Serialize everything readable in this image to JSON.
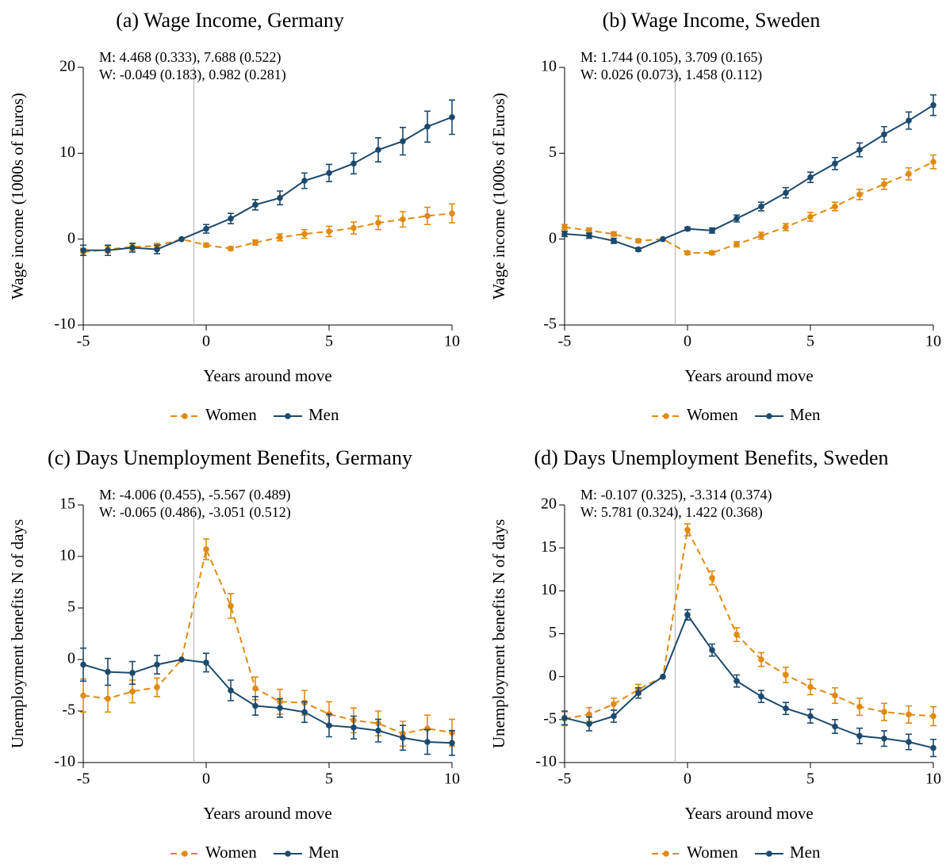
{
  "chart_data": [
    {
      "type": "line",
      "title": "(a) Wage Income, Germany",
      "x_label": "Years around move",
      "y_label": "Wage income (1000s of Euros)",
      "annotations": [
        "M: 4.468 (0.333), 7.688 (0.522)",
        "W: -0.049 (0.183), 0.982 (0.281)"
      ],
      "x": [
        -5,
        -4,
        -3,
        -2,
        -1,
        0,
        1,
        2,
        3,
        4,
        5,
        6,
        7,
        8,
        9,
        10
      ],
      "xlim": [
        -5,
        10
      ],
      "xticks": [
        -5,
        0,
        5,
        10
      ],
      "ylim": [
        -10,
        20
      ],
      "yticks": [
        -10,
        0,
        10,
        20
      ],
      "vline": -0.5,
      "series": [
        {
          "name": "Women",
          "color": "#e08a12",
          "dashed": true,
          "values": [
            -1.5,
            -1.2,
            -0.9,
            -0.8,
            0,
            -0.7,
            -1.1,
            -0.4,
            0.2,
            0.6,
            0.9,
            1.3,
            1.9,
            2.3,
            2.7,
            3.0
          ],
          "errors": [
            0.4,
            0.4,
            0.4,
            0.3,
            0,
            0.2,
            0.2,
            0.3,
            0.4,
            0.5,
            0.6,
            0.7,
            0.8,
            0.9,
            1.0,
            1.1
          ]
        },
        {
          "name": "Men",
          "color": "#1c4a6e",
          "dashed": false,
          "values": [
            -1.3,
            -1.3,
            -1.0,
            -1.2,
            0,
            1.2,
            2.4,
            4.0,
            4.8,
            6.8,
            7.7,
            8.8,
            10.4,
            11.4,
            13.1,
            14.2
          ],
          "errors": [
            0.6,
            0.6,
            0.5,
            0.5,
            0,
            0.5,
            0.6,
            0.6,
            0.8,
            0.9,
            1.0,
            1.2,
            1.4,
            1.6,
            1.8,
            2.0
          ]
        }
      ]
    },
    {
      "type": "line",
      "title": "(b) Wage Income, Sweden",
      "x_label": "Years around move",
      "y_label": "Wage income (1000s of Euros)",
      "annotations": [
        "M: 1.744 (0.105), 3.709 (0.165)",
        "W: 0.026 (0.073), 1.458 (0.112)"
      ],
      "x": [
        -5,
        -4,
        -3,
        -2,
        -1,
        0,
        1,
        2,
        3,
        4,
        5,
        6,
        7,
        8,
        9,
        10
      ],
      "xlim": [
        -5,
        10
      ],
      "xticks": [
        -5,
        0,
        5,
        10
      ],
      "ylim": [
        -5,
        10
      ],
      "yticks": [
        -5,
        0,
        5,
        10
      ],
      "vline": -0.5,
      "series": [
        {
          "name": "Women",
          "color": "#e08a12",
          "dashed": true,
          "values": [
            0.7,
            0.5,
            0.3,
            -0.1,
            0,
            -0.8,
            -0.8,
            -0.3,
            0.2,
            0.7,
            1.3,
            1.9,
            2.6,
            3.2,
            3.8,
            4.5
          ],
          "errors": [
            0.15,
            0.15,
            0.12,
            0.1,
            0,
            0.1,
            0.1,
            0.15,
            0.2,
            0.2,
            0.25,
            0.25,
            0.3,
            0.3,
            0.35,
            0.4
          ]
        },
        {
          "name": "Men",
          "color": "#1c4a6e",
          "dashed": false,
          "values": [
            0.3,
            0.2,
            -0.1,
            -0.6,
            0,
            0.6,
            0.5,
            1.2,
            1.9,
            2.7,
            3.6,
            4.4,
            5.2,
            6.1,
            6.9,
            7.8
          ],
          "errors": [
            0.15,
            0.15,
            0.15,
            0.1,
            0,
            0.1,
            0.15,
            0.2,
            0.25,
            0.3,
            0.3,
            0.35,
            0.4,
            0.45,
            0.5,
            0.6
          ]
        }
      ]
    },
    {
      "type": "line",
      "title": "(c) Days Unemployment Benefits, Germany",
      "x_label": "Years around move",
      "y_label": "Unemployment benefits N of days",
      "annotations": [
        "M: -4.006 (0.455), -5.567 (0.489)",
        "W: -0.065 (0.486), -3.051 (0.512)"
      ],
      "x": [
        -5,
        -4,
        -3,
        -2,
        -1,
        0,
        1,
        2,
        3,
        4,
        5,
        6,
        7,
        8,
        9,
        10
      ],
      "xlim": [
        -5,
        10
      ],
      "xticks": [
        -5,
        0,
        5,
        10
      ],
      "ylim": [
        -10,
        15
      ],
      "yticks": [
        -10,
        -5,
        0,
        5,
        10,
        15
      ],
      "vline": -0.5,
      "series": [
        {
          "name": "Women",
          "color": "#e08a12",
          "dashed": true,
          "values": [
            -3.5,
            -3.8,
            -3.1,
            -2.7,
            0,
            10.7,
            5.2,
            -2.8,
            -4.1,
            -4.2,
            -5.3,
            -5.9,
            -6.2,
            -7.2,
            -6.7,
            -7.1
          ],
          "errors": [
            1.6,
            1.3,
            1.1,
            0.9,
            0,
            1.0,
            1.2,
            1.1,
            1.2,
            1.2,
            1.2,
            1.2,
            1.2,
            1.2,
            1.3,
            1.3
          ]
        },
        {
          "name": "Men",
          "color": "#1c4a6e",
          "dashed": false,
          "values": [
            -0.5,
            -1.2,
            -1.3,
            -0.5,
            0,
            -0.3,
            -3.0,
            -4.5,
            -4.7,
            -5.1,
            -6.4,
            -6.6,
            -6.9,
            -7.6,
            -8.0,
            -8.1
          ],
          "errors": [
            1.6,
            1.3,
            1.1,
            0.9,
            0,
            0.9,
            1.0,
            0.9,
            0.9,
            1.0,
            1.1,
            1.1,
            1.1,
            1.2,
            1.2,
            1.2
          ]
        }
      ]
    },
    {
      "type": "line",
      "title": "(d) Days Unemployment Benefits, Sweden",
      "x_label": "Years around move",
      "y_label": "Unemployment benefits N of days",
      "annotations": [
        "M: -0.107 (0.325), -3.314 (0.374)",
        "W: 5.781 (0.324), 1.422 (0.368)"
      ],
      "x": [
        -5,
        -4,
        -3,
        -2,
        -1,
        0,
        1,
        2,
        3,
        4,
        5,
        6,
        7,
        8,
        9,
        10
      ],
      "xlim": [
        -5,
        10
      ],
      "xticks": [
        -5,
        0,
        5,
        10
      ],
      "ylim": [
        -10,
        20
      ],
      "yticks": [
        -10,
        -5,
        0,
        5,
        10,
        15,
        20
      ],
      "vline": -0.5,
      "series": [
        {
          "name": "Women",
          "color": "#e08a12",
          "dashed": true,
          "values": [
            -4.9,
            -4.4,
            -3.2,
            -1.5,
            0,
            17.1,
            11.5,
            4.9,
            2.0,
            0.2,
            -1.2,
            -2.2,
            -3.5,
            -4.1,
            -4.4,
            -4.6
          ],
          "errors": [
            0.8,
            0.8,
            0.7,
            0.6,
            0,
            0.7,
            0.8,
            0.8,
            0.8,
            0.9,
            0.9,
            0.9,
            1.0,
            1.0,
            1.0,
            1.1
          ]
        },
        {
          "name": "Men",
          "color": "#1c4a6e",
          "dashed": false,
          "values": [
            -4.8,
            -5.5,
            -4.6,
            -1.9,
            0,
            7.2,
            3.1,
            -0.5,
            -2.3,
            -3.7,
            -4.6,
            -5.8,
            -6.9,
            -7.2,
            -7.6,
            -8.3
          ],
          "errors": [
            0.8,
            0.8,
            0.7,
            0.6,
            0,
            0.6,
            0.7,
            0.7,
            0.7,
            0.7,
            0.8,
            0.8,
            0.9,
            0.9,
            0.9,
            1.0
          ]
        }
      ]
    }
  ]
}
